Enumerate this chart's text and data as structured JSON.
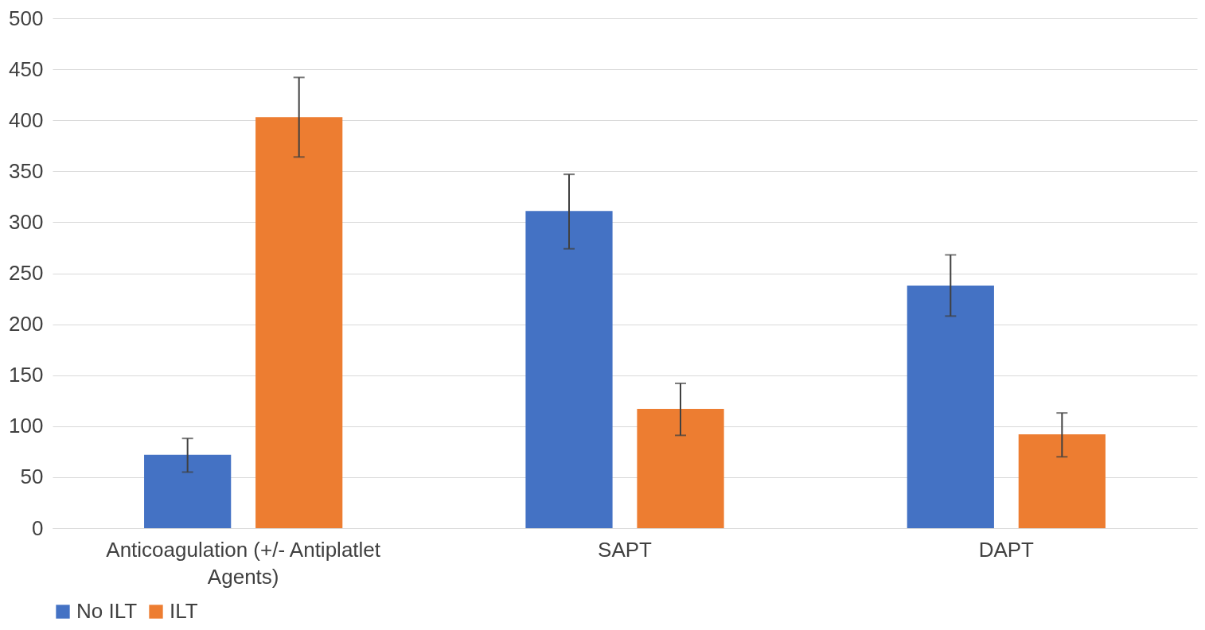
{
  "chart_data": {
    "type": "bar",
    "categories": [
      "Anticoagulation (+/- Antiplatlet Agents)",
      "SAPT",
      "DAPT"
    ],
    "series": [
      {
        "name": "No ILT",
        "color": "#4472c4",
        "values": [
          72,
          311,
          238
        ],
        "errors": [
          [
            55,
            88
          ],
          [
            274,
            347
          ],
          [
            208,
            268
          ]
        ]
      },
      {
        "name": "ILT",
        "color": "#ed7d31",
        "values": [
          403,
          117,
          92
        ],
        "errors": [
          [
            364,
            442
          ],
          [
            91,
            142
          ],
          [
            70,
            113
          ]
        ]
      }
    ],
    "ylim": [
      0,
      500
    ],
    "yticks": [
      0,
      50,
      100,
      150,
      200,
      250,
      300,
      350,
      400,
      450,
      500
    ],
    "grid": "y",
    "legend": "bottom"
  }
}
